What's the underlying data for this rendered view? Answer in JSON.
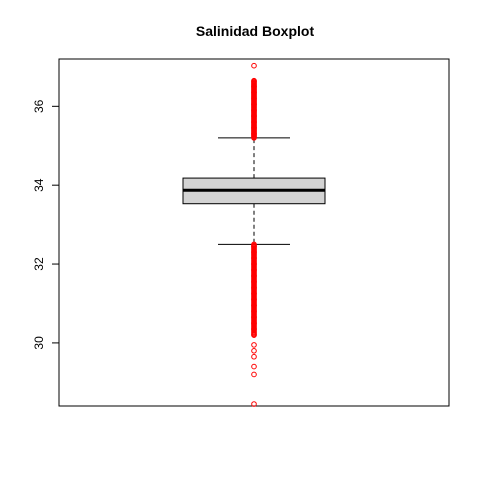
{
  "chart_data": {
    "type": "boxplot",
    "title": "Salinidad Boxplot",
    "xlabel": "",
    "ylabel": "",
    "ylim": [
      28.4,
      37.2
    ],
    "y_ticks": [
      30,
      32,
      34,
      36
    ],
    "box": {
      "whisker_low": 32.5,
      "q1": 33.53,
      "median": 33.87,
      "q3": 34.18,
      "whisker_high": 35.2
    },
    "outliers_high_dense_range": [
      35.2,
      36.65
    ],
    "outliers_low_dense_range": [
      30.2,
      32.5
    ],
    "outliers": [
      37.03,
      36.65,
      36.5,
      36.35,
      36.2,
      36.05,
      35.9,
      35.75,
      35.6,
      35.45,
      35.3,
      32.45,
      32.3,
      32.15,
      32.0,
      31.85,
      31.7,
      31.55,
      31.4,
      31.25,
      31.1,
      30.95,
      30.8,
      30.65,
      30.5,
      30.35,
      30.2,
      29.95,
      29.8,
      29.65,
      29.4,
      29.2,
      28.45
    ],
    "box_fill": "#d3d3d3",
    "outlier_color": "#ff0000",
    "grid": false
  }
}
